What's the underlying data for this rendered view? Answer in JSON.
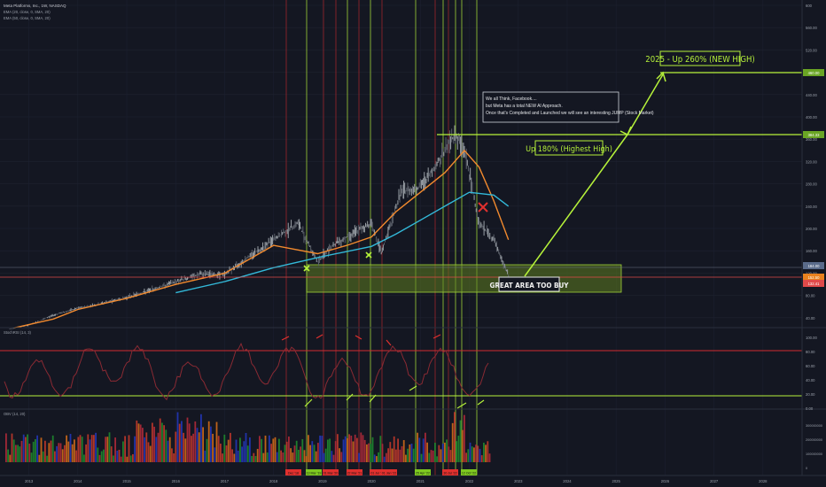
{
  "header": {
    "symbol": "Meta Platforms, Inc., 1W, NASDAQ",
    "ema_a": "EMA (20, close, 0, SMA, 20)",
    "ema_b": "EMA (50, close, 0, SMA, 20)"
  },
  "colors": {
    "bg": "#141722",
    "ema_fast": "#f28a2e",
    "ema_slow": "#33b9d9",
    "accent_green": "#b6f23a",
    "vline_red": "#b3262b",
    "rsi_line": "#8a2a33"
  },
  "annotations": {
    "new_high": "2025 - Up 260% (NEW HIGH)",
    "highest_high": "Up 180% (Highest High)",
    "buy_zone": "GREAT AREA TOO BUY",
    "note_line1": "We all Think, Facebook....",
    "note_line2": "but Meta has a total NEW AI Approach.",
    "note_line3": "Once that's Completed and Launched we will see an interesting JUMP (Stock Market)"
  },
  "price_axis": {
    "ticks": [
      "600",
      "560.00",
      "520.00",
      "480.00",
      "440.00",
      "400.00",
      "360.00",
      "320.00",
      "280.00",
      "240.00",
      "200.00",
      "160.00",
      "120.00",
      "80.00",
      "40.00"
    ],
    "badges": [
      {
        "label": "460.00",
        "color": "#6aa524"
      },
      {
        "label": "384.33",
        "color": "#6aa524"
      },
      {
        "label": "184.00",
        "color": "#5a6b8a"
      },
      {
        "label": "152.50",
        "color": "#e9821e"
      },
      {
        "label": "132.41",
        "color": "#e04a4a"
      }
    ]
  },
  "rsi_panel": {
    "label": "StochRSI (14, 3)",
    "ticks": [
      "100.00",
      "80.00",
      "60.00",
      "40.00",
      "20.00",
      "0.00"
    ]
  },
  "volume_panel": {
    "label": "OBV (14, 20)",
    "ticks": [
      "300000000",
      "200000000",
      "100000000",
      "0"
    ]
  },
  "time_axis": {
    "years": [
      "2013",
      "2014",
      "2015",
      "2016",
      "2017",
      "2018",
      "2019",
      "2020",
      "2021",
      "2022",
      "2023",
      "2024",
      "2025",
      "2026",
      "2027",
      "2028"
    ],
    "marked_dates": [
      "Dec '18",
      "13 Mar '19",
      "01 Mar '20",
      "22 Mar '21",
      "01 Jul '21",
      "01 Jan '22",
      "25 Apr '22",
      "30 Jul '22",
      "12 Oct '22"
    ]
  },
  "chart_data": {
    "type": "line",
    "series": [
      {
        "x": [
          2012.6,
          2013.0,
          2013.5,
          2014.0,
          2014.5,
          2015.0,
          2015.5,
          2016.0,
          2016.5,
          2017.0,
          2017.5,
          2018.0,
          2018.5,
          2018.9,
          2019.2,
          2019.6,
          2020.0,
          2020.2,
          2020.6,
          2021.0,
          2021.3,
          2021.7,
          2021.9,
          2022.2,
          2022.5,
          2022.8
        ],
        "values": [
          20,
          27,
          45,
          57,
          66,
          77,
          90,
          105,
          118,
          118,
          150,
          180,
          210,
          140,
          170,
          190,
          210,
          155,
          265,
          275,
          310,
          370,
          340,
          210,
          180,
          115
        ]
      },
      {
        "name": "EMA (20, close, 0, SMA, 20)",
        "x": [
          2012.7,
          2013.5,
          2014.0,
          2015.0,
          2016.0,
          2017.0,
          2018.0,
          2018.9,
          2019.5,
          2020.0,
          2020.5,
          2021.0,
          2021.5,
          2021.9,
          2022.2,
          2022.5,
          2022.8
        ],
        "values": [
          22,
          38,
          55,
          75,
          100,
          120,
          170,
          155,
          170,
          185,
          230,
          265,
          300,
          340,
          310,
          250,
          180
        ]
      },
      {
        "name": "EMA (50, close, 0, SMA, 20)",
        "x": [
          2016.0,
          2017.0,
          2018.0,
          2019.0,
          2020.0,
          2020.5,
          2021.0,
          2021.5,
          2022.0,
          2022.5,
          2022.8
        ],
        "values": [
          85,
          105,
          130,
          150,
          168,
          190,
          215,
          240,
          265,
          260,
          240
        ]
      }
    ],
    "levels": {
      "buy_zone": [
        124,
        170
      ],
      "highest_high": 384.33,
      "new_high": 460
    },
    "ylim": [
      0,
      600
    ],
    "xlim": [
      2012.5,
      2028.8
    ],
    "grid": true
  }
}
